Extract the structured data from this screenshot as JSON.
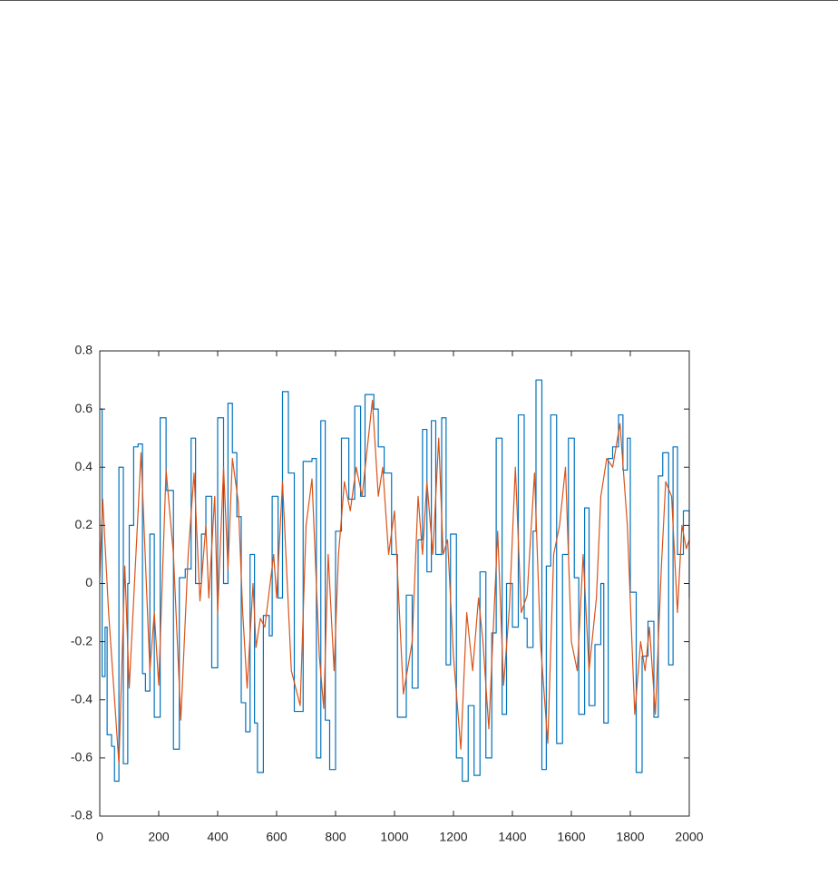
{
  "chart_data": {
    "type": "line",
    "xlim": [
      0,
      2000
    ],
    "xticks": [
      0,
      200,
      400,
      600,
      800,
      1000,
      1200,
      1400,
      1600,
      1800,
      2000
    ],
    "ylim": [
      -0.8,
      0.8
    ],
    "yticks": [
      -0.8,
      -0.6,
      -0.4,
      -0.2,
      0,
      0.2,
      0.4,
      0.6,
      0.8
    ],
    "series": [
      {
        "color": "#0072bd",
        "drawstyle": "steps-post",
        "x": [
          0,
          8,
          18,
          25,
          40,
          50,
          65,
          80,
          95,
          100,
          115,
          130,
          145,
          155,
          170,
          185,
          205,
          225,
          250,
          270,
          290,
          310,
          325,
          345,
          360,
          380,
          400,
          420,
          435,
          450,
          465,
          480,
          495,
          510,
          525,
          535,
          555,
          575,
          585,
          605,
          620,
          640,
          660,
          690,
          720,
          735,
          750,
          765,
          780,
          800,
          820,
          845,
          865,
          885,
          900,
          930,
          945,
          965,
          990,
          1010,
          1040,
          1060,
          1080,
          1095,
          1110,
          1125,
          1140,
          1160,
          1175,
          1190,
          1210,
          1230,
          1250,
          1270,
          1290,
          1310,
          1330,
          1345,
          1365,
          1380,
          1400,
          1420,
          1440,
          1450,
          1470,
          1480,
          1500,
          1515,
          1530,
          1550,
          1570,
          1590,
          1610,
          1625,
          1645,
          1660,
          1680,
          1700,
          1710,
          1725,
          1740,
          1760,
          1775,
          1790,
          1800,
          1820,
          1840,
          1860,
          1880,
          1895,
          1910,
          1930,
          1945,
          1960,
          1980,
          2000
        ],
        "values": [
          0.6,
          -0.32,
          -0.15,
          -0.52,
          -0.56,
          -0.68,
          0.4,
          -0.62,
          0.0,
          0.2,
          0.47,
          0.48,
          -0.31,
          -0.37,
          0.17,
          -0.46,
          0.57,
          0.32,
          -0.57,
          0.02,
          0.05,
          0.5,
          0.0,
          0.17,
          0.3,
          -0.29,
          0.57,
          0.0,
          0.62,
          0.45,
          0.23,
          -0.41,
          -0.51,
          0.1,
          -0.48,
          -0.65,
          -0.11,
          -0.18,
          0.3,
          -0.05,
          0.66,
          0.38,
          -0.44,
          0.42,
          0.43,
          -0.6,
          0.56,
          -0.47,
          -0.64,
          0.18,
          0.5,
          0.29,
          0.61,
          0.3,
          0.65,
          0.6,
          0.47,
          0.38,
          0.1,
          -0.46,
          -0.04,
          -0.36,
          0.15,
          0.53,
          0.04,
          0.56,
          0.1,
          0.57,
          -0.28,
          0.17,
          -0.6,
          -0.68,
          -0.42,
          -0.66,
          0.04,
          -0.6,
          -0.17,
          0.5,
          -0.45,
          0.0,
          -0.15,
          0.58,
          -0.12,
          -0.22,
          0.18,
          0.7,
          -0.64,
          0.06,
          0.58,
          -0.55,
          0.1,
          0.5,
          0.02,
          -0.45,
          0.26,
          -0.42,
          -0.21,
          0.0,
          -0.48,
          0.43,
          0.47,
          0.58,
          0.39,
          0.5,
          -0.03,
          -0.65,
          -0.25,
          -0.13,
          -0.46,
          0.37,
          0.45,
          -0.28,
          0.47,
          0.1,
          0.25,
          -0.05
        ]
      },
      {
        "color": "#d95319",
        "x": [
          0,
          10,
          30,
          65,
          85,
          100,
          140,
          170,
          185,
          200,
          225,
          250,
          275,
          300,
          320,
          340,
          360,
          370,
          390,
          400,
          420,
          435,
          450,
          470,
          485,
          500,
          520,
          530,
          545,
          560,
          590,
          600,
          620,
          650,
          680,
          700,
          720,
          745,
          760,
          775,
          795,
          810,
          830,
          850,
          870,
          890,
          925,
          945,
          960,
          980,
          1000,
          1030,
          1060,
          1080,
          1095,
          1110,
          1130,
          1150,
          1165,
          1180,
          1200,
          1225,
          1245,
          1265,
          1285,
          1300,
          1320,
          1350,
          1370,
          1390,
          1410,
          1430,
          1450,
          1475,
          1495,
          1520,
          1540,
          1560,
          1580,
          1600,
          1620,
          1640,
          1660,
          1685,
          1700,
          1720,
          1740,
          1765,
          1790,
          1815,
          1835,
          1850,
          1865,
          1885,
          1905,
          1920,
          1940,
          1960,
          1975,
          1990,
          2000
        ],
        "values": [
          0.02,
          0.29,
          -0.1,
          -0.62,
          0.06,
          -0.36,
          0.45,
          -0.3,
          -0.1,
          -0.35,
          0.39,
          0.1,
          -0.47,
          0.1,
          0.38,
          -0.06,
          0.2,
          -0.05,
          0.3,
          -0.1,
          0.4,
          0.05,
          0.43,
          0.28,
          -0.1,
          -0.36,
          0.0,
          -0.22,
          -0.12,
          -0.15,
          0.1,
          -0.05,
          0.35,
          -0.3,
          -0.42,
          0.2,
          0.36,
          -0.25,
          -0.43,
          0.1,
          -0.3,
          0.1,
          0.35,
          0.25,
          0.4,
          0.3,
          0.63,
          0.3,
          0.4,
          0.1,
          0.25,
          -0.38,
          -0.2,
          0.3,
          0.1,
          0.35,
          0.1,
          0.5,
          0.1,
          0.15,
          -0.25,
          -0.57,
          -0.1,
          -0.3,
          -0.05,
          -0.2,
          -0.5,
          0.18,
          -0.35,
          -0.08,
          0.4,
          -0.1,
          -0.04,
          0.38,
          -0.2,
          -0.55,
          0.1,
          0.2,
          0.4,
          -0.2,
          -0.3,
          0.1,
          -0.3,
          -0.05,
          0.3,
          0.43,
          0.4,
          0.55,
          0.2,
          -0.45,
          -0.2,
          -0.3,
          -0.15,
          -0.45,
          0.05,
          0.35,
          0.3,
          -0.1,
          0.2,
          0.12,
          0.15
        ]
      }
    ]
  }
}
